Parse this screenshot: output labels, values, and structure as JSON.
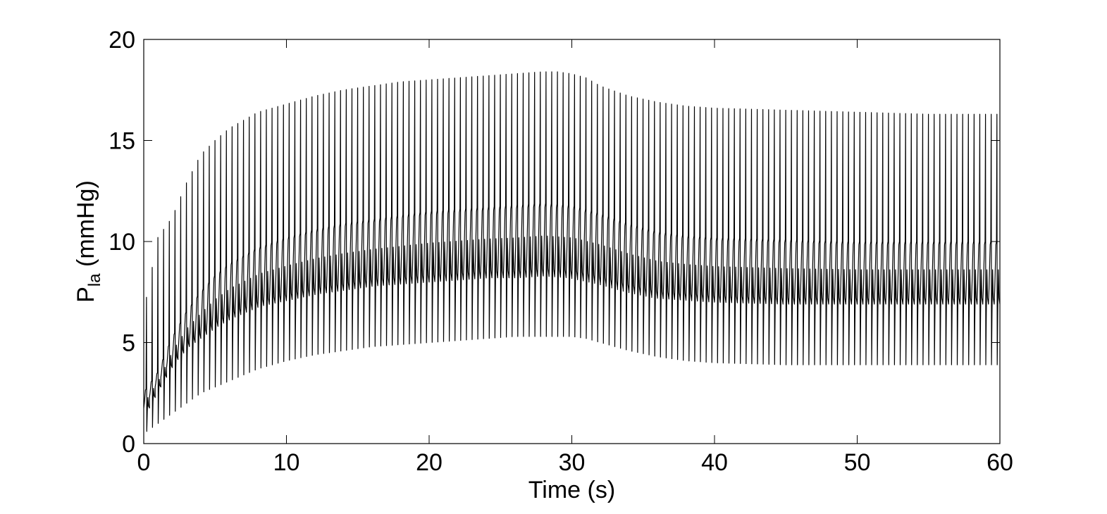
{
  "chart_data": {
    "type": "line",
    "xlabel": "Time (s)",
    "ylabel": {
      "main": "P",
      "sub": "la",
      "unit": " (mmHg)"
    },
    "xlim": [
      0,
      60
    ],
    "ylim": [
      0,
      20
    ],
    "xticks": [
      "0",
      "10",
      "20",
      "30",
      "40",
      "50",
      "60"
    ],
    "yticks": [
      "0",
      "5",
      "10",
      "15",
      "20"
    ],
    "grid": false,
    "line_color": "#000000",
    "beat_period_s": 0.4,
    "series": [
      {
        "peak_envelope": {
          "t": [
            0,
            1,
            2,
            3,
            4,
            5,
            6,
            7,
            8,
            10,
            12,
            14,
            16,
            18,
            20,
            22,
            24,
            26,
            28,
            29,
            30,
            31,
            32,
            34,
            36,
            38,
            40,
            45,
            50,
            55,
            60
          ],
          "v": [
            6.5,
            10.2,
            11.2,
            12.9,
            14.3,
            15.0,
            15.6,
            16.0,
            16.4,
            16.8,
            17.2,
            17.5,
            17.7,
            17.9,
            18.0,
            18.1,
            18.2,
            18.3,
            18.4,
            18.4,
            18.3,
            18.1,
            17.7,
            17.2,
            16.9,
            16.7,
            16.6,
            16.5,
            16.4,
            16.3,
            16.3
          ]
        },
        "trough_envelope": {
          "t": [
            0,
            1,
            2,
            3,
            4,
            5,
            6,
            7,
            8,
            10,
            12,
            14,
            16,
            18,
            20,
            22,
            24,
            26,
            28,
            30,
            31,
            32,
            34,
            36,
            38,
            40,
            45,
            50,
            55,
            60
          ],
          "v": [
            0.5,
            1.0,
            1.5,
            2.0,
            2.5,
            2.8,
            3.1,
            3.4,
            3.7,
            4.1,
            4.4,
            4.6,
            4.8,
            4.9,
            5.0,
            5.1,
            5.2,
            5.3,
            5.3,
            5.3,
            5.2,
            5.0,
            4.6,
            4.3,
            4.1,
            4.0,
            3.9,
            3.9,
            3.9,
            3.9
          ]
        },
        "plateau_high_envelope": {
          "t": [
            0,
            1,
            2,
            3,
            4,
            5,
            6,
            7,
            8,
            10,
            12,
            14,
            16,
            18,
            20,
            22,
            24,
            26,
            28,
            30,
            32,
            34,
            36,
            38,
            40,
            45,
            50,
            55,
            60
          ],
          "v": [
            2.5,
            3.5,
            5.2,
            6.5,
            7.5,
            8.3,
            8.9,
            9.3,
            9.7,
            10.2,
            10.6,
            10.9,
            11.1,
            11.3,
            11.5,
            11.6,
            11.7,
            11.8,
            11.9,
            11.8,
            11.4,
            10.9,
            10.5,
            10.3,
            10.2,
            10.1,
            10.0,
            10.0,
            10.0
          ]
        },
        "plateau_low_envelope": {
          "t": [
            0,
            1,
            2,
            3,
            4,
            5,
            6,
            7,
            8,
            10,
            12,
            14,
            16,
            18,
            20,
            22,
            24,
            26,
            28,
            30,
            32,
            34,
            36,
            38,
            40,
            45,
            50,
            55,
            60
          ],
          "v": [
            1.5,
            2.8,
            4.0,
            4.8,
            5.3,
            5.8,
            6.2,
            6.5,
            6.8,
            7.1,
            7.4,
            7.6,
            7.8,
            7.9,
            8.0,
            8.1,
            8.2,
            8.2,
            8.3,
            8.2,
            7.9,
            7.5,
            7.2,
            7.1,
            7.0,
            6.9,
            6.9,
            6.9,
            6.9
          ]
        }
      }
    ]
  }
}
